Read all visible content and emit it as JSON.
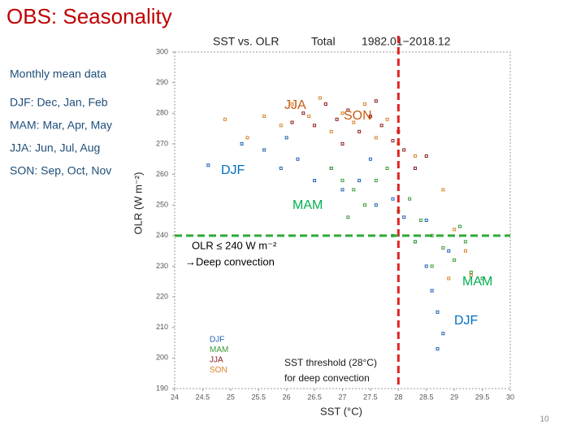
{
  "slide": {
    "title": "OBS: Seasonality",
    "heading": "Monthly mean data",
    "notes": [
      "DJF: Dec, Jan, Feb",
      "MAM: Mar, Apr, May",
      "JJA: Jun, Jul, Aug",
      "SON: Sep, Oct, Nov"
    ],
    "page_number": "10"
  },
  "chart_data": {
    "type": "scatter",
    "title": "SST vs. OLR",
    "subtitle": "Total",
    "period": "1982.01−2018.12",
    "x_label": "SST (°C)",
    "y_label": "OLR (W m⁻²)",
    "xlim": [
      24,
      30
    ],
    "xticks": [
      24,
      24.5,
      25,
      25.5,
      26,
      26.5,
      27,
      27.5,
      28,
      28.5,
      29,
      29.5,
      30
    ],
    "ylim": [
      190,
      300
    ],
    "yticks": [
      190,
      200,
      210,
      220,
      230,
      240,
      250,
      260,
      270,
      280,
      290,
      300
    ],
    "reference_lines": [
      {
        "axis": "x",
        "value": 28,
        "color": "#e02424"
      },
      {
        "axis": "y",
        "value": 240,
        "color": "#2eaa3a"
      }
    ],
    "series": [
      {
        "name": "DJF",
        "color": "#1f5fb4",
        "x": [
          25.6,
          25.9,
          26.2,
          26.5,
          26.8,
          27.0,
          27.3,
          27.6,
          27.9,
          28.1,
          28.3,
          28.5,
          28.6,
          28.7,
          28.8,
          28.5,
          28.9,
          27.5,
          26.0,
          28.7,
          24.6,
          25.2
        ],
        "values": [
          268,
          262,
          265,
          258,
          262,
          255,
          258,
          250,
          252,
          246,
          238,
          230,
          222,
          215,
          208,
          245,
          235,
          265,
          272,
          203,
          263,
          270
        ]
      },
      {
        "name": "MAM",
        "color": "#3a9a3a",
        "x": [
          26.8,
          27.0,
          27.2,
          27.4,
          27.6,
          27.8,
          28.0,
          28.2,
          28.4,
          28.6,
          28.8,
          29.0,
          29.2,
          29.3,
          29.5,
          27.9,
          28.3,
          29.1,
          28.6,
          27.1
        ],
        "values": [
          262,
          258,
          255,
          250,
          258,
          262,
          248,
          252,
          245,
          240,
          236,
          232,
          238,
          228,
          226,
          240,
          238,
          243,
          230,
          246
        ]
      },
      {
        "name": "JJA",
        "color": "#8b1a1a",
        "x": [
          26.3,
          26.5,
          26.7,
          26.9,
          27.1,
          27.3,
          27.5,
          27.7,
          27.9,
          28.1,
          28.3,
          26.1,
          27.0,
          27.6,
          28.0,
          28.5
        ],
        "values": [
          280,
          276,
          283,
          278,
          281,
          274,
          279,
          276,
          271,
          268,
          262,
          277,
          270,
          284,
          274,
          266
        ]
      },
      {
        "name": "SON",
        "color": "#d9822b",
        "x": [
          25.6,
          25.9,
          26.1,
          26.4,
          26.6,
          26.8,
          27.0,
          27.2,
          27.4,
          27.6,
          27.8,
          28.0,
          28.3,
          28.8,
          29.0,
          29.2,
          28.9,
          29.3,
          24.9,
          25.3
        ],
        "values": [
          279,
          276,
          283,
          279,
          285,
          274,
          280,
          277,
          283,
          272,
          278,
          270,
          266,
          255,
          242,
          235,
          226,
          227,
          278,
          272
        ]
      }
    ],
    "annotations": [
      {
        "text": "JJA",
        "color": "#c55a11"
      },
      {
        "text": "SON",
        "color": "#c55a11"
      },
      {
        "text": "DJF",
        "color": "#0070c0"
      },
      {
        "text": "MAM",
        "color": "#00b050"
      },
      {
        "text": "OLR ≤ 240 W m⁻²",
        "color": "#000000"
      },
      {
        "text": "→Deep convection",
        "color": "#000000"
      },
      {
        "text": "MAM",
        "color": "#00b050"
      },
      {
        "text": "DJF",
        "color": "#0070c0"
      },
      {
        "text": "SST threshold (28°C)",
        "color": "#1a1a1a"
      },
      {
        "text": "for deep convection",
        "color": "#1a1a1a"
      }
    ]
  }
}
